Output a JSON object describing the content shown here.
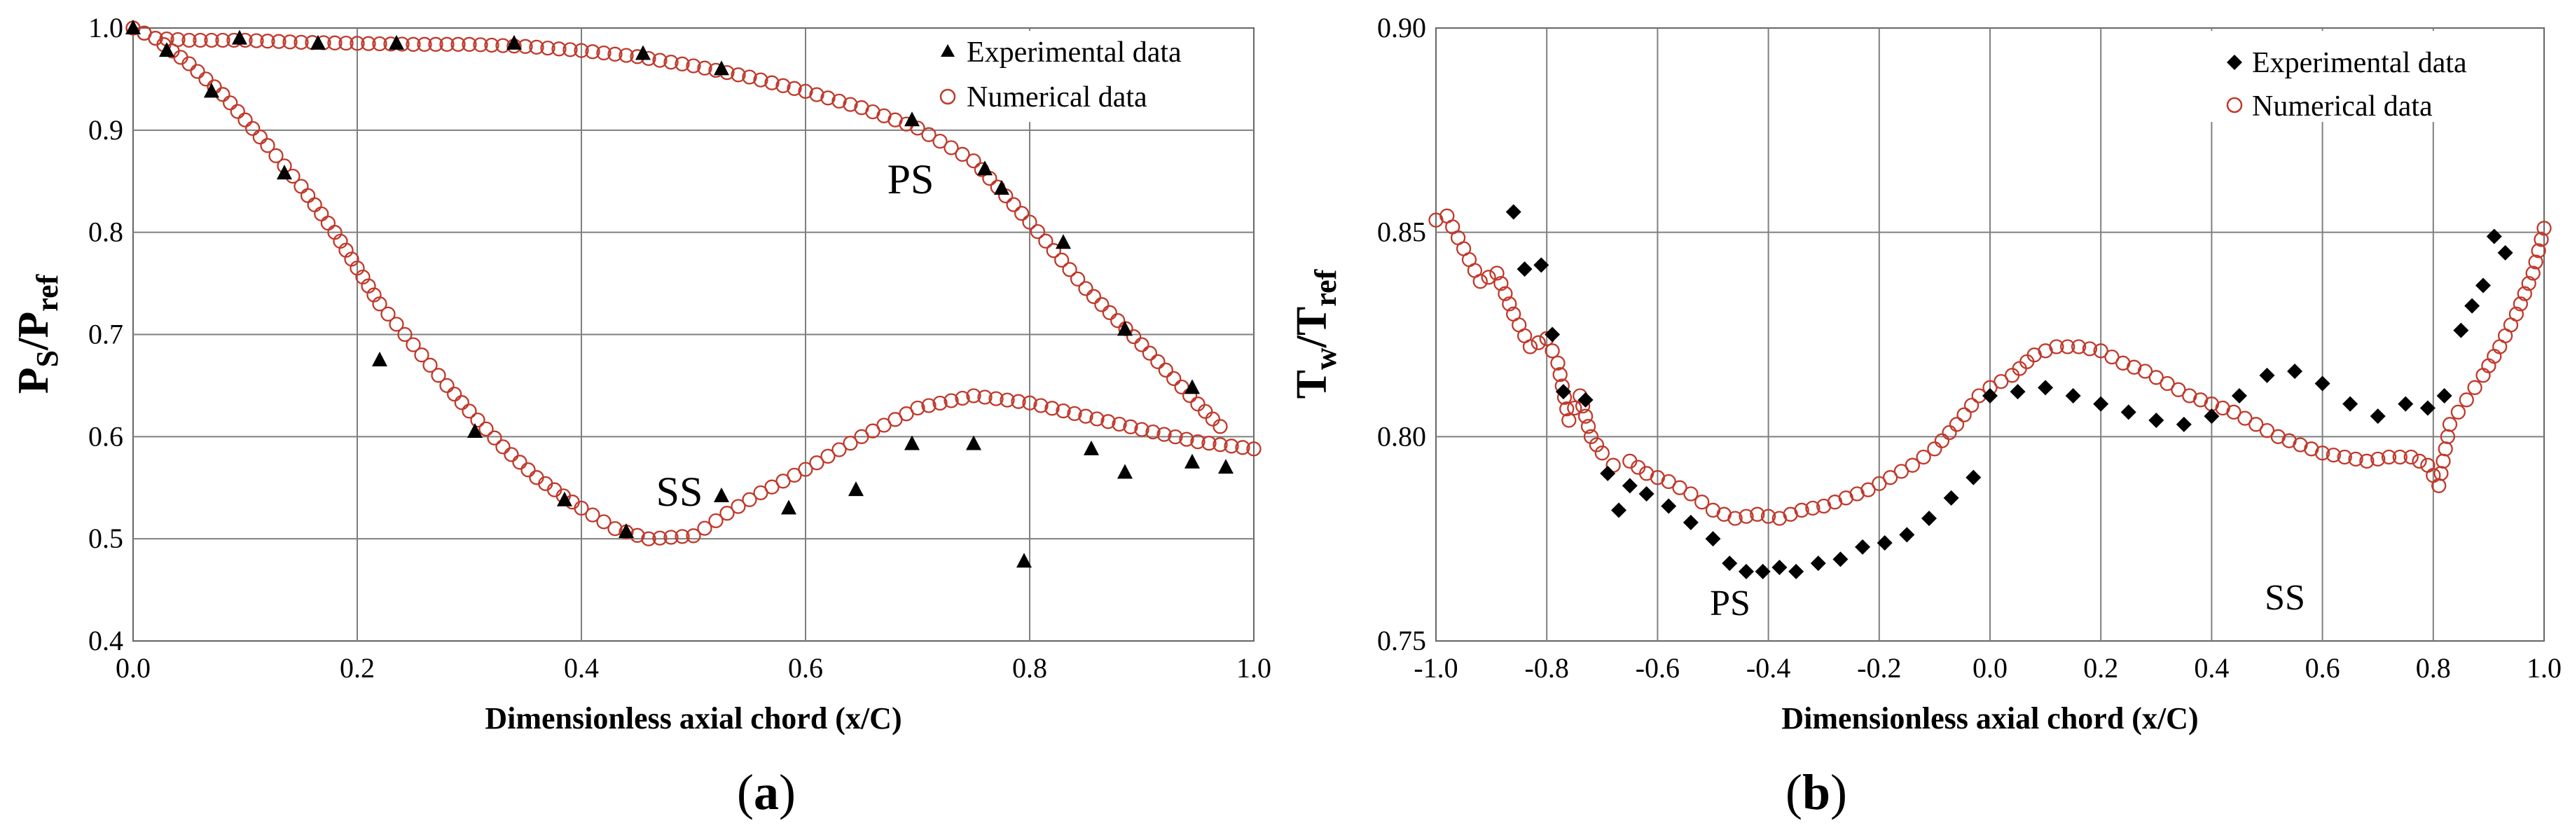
{
  "chart_data": [
    {
      "type": "scatter",
      "panel": "a",
      "caption": {
        "open": "(",
        "label": "a",
        "close": ")"
      },
      "xlabel": "Dimensionless axial chord (x/C)",
      "ylabel": {
        "main": "P",
        "sub1": "S",
        "sep": "/P",
        "sub2": "ref"
      },
      "xlim": [
        0,
        1
      ],
      "ylim": [
        0.4,
        1.0
      ],
      "xticks": [
        "0.0",
        "0.2",
        "0.4",
        "0.6",
        "0.8",
        "1.0"
      ],
      "yticks": [
        "0.4",
        "0.5",
        "0.6",
        "0.7",
        "0.8",
        "0.9",
        "1.0"
      ],
      "grid": true,
      "legend_position": "top-right",
      "legend": [
        "Experimental data",
        "Numerical data"
      ],
      "annotations": [
        {
          "text": "PS",
          "x": 0.69,
          "y": 0.875
        },
        {
          "text": "SS",
          "x": 0.42,
          "y": 0.545
        }
      ],
      "series": [
        {
          "name": "Experimental data",
          "marker": "triangle",
          "color": "#000000",
          "points": [
            [
              0.0,
              1.0
            ],
            [
              0.03,
              0.978
            ],
            [
              0.07,
              0.938
            ],
            [
              0.095,
              0.99
            ],
            [
              0.135,
              0.858
            ],
            [
              0.165,
              0.985
            ],
            [
              0.22,
              0.675
            ],
            [
              0.235,
              0.985
            ],
            [
              0.305,
              0.605
            ],
            [
              0.34,
              0.985
            ],
            [
              0.385,
              0.538
            ],
            [
              0.44,
              0.507
            ],
            [
              0.455,
              0.975
            ],
            [
              0.525,
              0.542
            ],
            [
              0.525,
              0.96
            ],
            [
              0.585,
              0.53
            ],
            [
              0.645,
              0.548
            ],
            [
              0.695,
              0.593
            ],
            [
              0.695,
              0.91
            ],
            [
              0.75,
              0.593
            ],
            [
              0.76,
              0.862
            ],
            [
              0.775,
              0.843
            ],
            [
              0.795,
              0.478
            ],
            [
              0.83,
              0.79
            ],
            [
              0.855,
              0.588
            ],
            [
              0.885,
              0.565
            ],
            [
              0.885,
              0.705
            ],
            [
              0.945,
              0.575
            ],
            [
              0.945,
              0.648
            ],
            [
              0.975,
              0.57
            ]
          ]
        },
        {
          "name": "Numerical data - PS",
          "marker": "circle-open",
          "color": "#c0392b",
          "x": [
            0.0,
            0.02,
            0.05,
            0.1,
            0.15,
            0.2,
            0.25,
            0.3,
            0.35,
            0.4,
            0.45,
            0.5,
            0.55,
            0.6,
            0.65,
            0.7,
            0.75,
            0.8,
            0.85,
            0.9,
            0.95,
            0.97
          ],
          "y": [
            1.0,
            0.99,
            0.988,
            0.988,
            0.986,
            0.985,
            0.984,
            0.984,
            0.982,
            0.978,
            0.972,
            0.963,
            0.952,
            0.938,
            0.922,
            0.902,
            0.87,
            0.81,
            0.745,
            0.69,
            0.632,
            0.61
          ]
        },
        {
          "name": "Numerical data - SS",
          "marker": "circle-open",
          "color": "#c0392b",
          "x": [
            0.0,
            0.02,
            0.05,
            0.08,
            0.1,
            0.12,
            0.15,
            0.18,
            0.2,
            0.22,
            0.25,
            0.28,
            0.3,
            0.33,
            0.36,
            0.4,
            0.43,
            0.46,
            0.5,
            0.53,
            0.56,
            0.6,
            0.65,
            0.7,
            0.75,
            0.8,
            0.85,
            0.9,
            0.95,
            1.0
          ],
          "y": [
            1.0,
            0.99,
            0.965,
            0.935,
            0.91,
            0.885,
            0.845,
            0.8,
            0.765,
            0.73,
            0.69,
            0.65,
            0.625,
            0.59,
            0.56,
            0.53,
            0.51,
            0.5,
            0.503,
            0.525,
            0.545,
            0.568,
            0.6,
            0.628,
            0.64,
            0.633,
            0.62,
            0.607,
            0.595,
            0.588
          ]
        }
      ]
    },
    {
      "type": "scatter",
      "panel": "b",
      "caption": {
        "open": "(",
        "label": "b",
        "close": ")"
      },
      "xlabel": "Dimensionless axial chord (x/C)",
      "ylabel": {
        "main": "T",
        "sub1": "w",
        "sep": "/T",
        "sub2": "ref"
      },
      "xlim": [
        -1,
        1
      ],
      "ylim": [
        0.75,
        0.9
      ],
      "xticks": [
        "-1.0",
        "-0.8",
        "-0.6",
        "-0.4",
        "-0.2",
        "0.0",
        "0.2",
        "0.4",
        "0.6",
        "0.8",
        "1.0"
      ],
      "yticks": [
        "0.75",
        "0.80",
        "0.85",
        "0.90"
      ],
      "grid": true,
      "legend_position": "top-right",
      "legend": [
        "Experimental data",
        "Numerical data"
      ],
      "annotations": [
        {
          "text": "PS",
          "x": -0.44,
          "y": 0.766
        },
        {
          "text": "SS",
          "x": 0.55,
          "y": 0.768
        }
      ],
      "series": [
        {
          "name": "Experimental data",
          "marker": "diamond",
          "color": "#000000",
          "points": [
            [
              -0.86,
              0.855
            ],
            [
              -0.84,
              0.841
            ],
            [
              -0.81,
              0.842
            ],
            [
              -0.79,
              0.825
            ],
            [
              -0.77,
              0.811
            ],
            [
              -0.73,
              0.809
            ],
            [
              -0.69,
              0.791
            ],
            [
              -0.67,
              0.782
            ],
            [
              -0.65,
              0.788
            ],
            [
              -0.62,
              0.786
            ],
            [
              -0.58,
              0.783
            ],
            [
              -0.54,
              0.779
            ],
            [
              -0.5,
              0.775
            ],
            [
              -0.47,
              0.769
            ],
            [
              -0.44,
              0.767
            ],
            [
              -0.41,
              0.767
            ],
            [
              -0.38,
              0.768
            ],
            [
              -0.35,
              0.767
            ],
            [
              -0.31,
              0.769
            ],
            [
              -0.27,
              0.77
            ],
            [
              -0.23,
              0.773
            ],
            [
              -0.19,
              0.774
            ],
            [
              -0.15,
              0.776
            ],
            [
              -0.11,
              0.78
            ],
            [
              -0.07,
              0.785
            ],
            [
              -0.03,
              0.79
            ],
            [
              0.0,
              0.81
            ],
            [
              0.05,
              0.811
            ],
            [
              0.1,
              0.812
            ],
            [
              0.15,
              0.81
            ],
            [
              0.2,
              0.808
            ],
            [
              0.25,
              0.806
            ],
            [
              0.3,
              0.804
            ],
            [
              0.35,
              0.803
            ],
            [
              0.4,
              0.805
            ],
            [
              0.45,
              0.81
            ],
            [
              0.5,
              0.815
            ],
            [
              0.55,
              0.816
            ],
            [
              0.6,
              0.813
            ],
            [
              0.65,
              0.808
            ],
            [
              0.7,
              0.805
            ],
            [
              0.75,
              0.808
            ],
            [
              0.79,
              0.807
            ],
            [
              0.82,
              0.81
            ],
            [
              0.85,
              0.826
            ],
            [
              0.87,
              0.832
            ],
            [
              0.89,
              0.837
            ],
            [
              0.91,
              0.849
            ],
            [
              0.93,
              0.845
            ]
          ]
        },
        {
          "name": "Numerical data",
          "marker": "circle-open",
          "color": "#c0392b",
          "x": [
            -1.0,
            -0.98,
            -0.95,
            -0.92,
            -0.89,
            -0.86,
            -0.83,
            -0.8,
            -0.78,
            -0.76,
            -0.74,
            -0.72,
            -0.7,
            -0.68,
            -0.65,
            -0.62,
            -0.58,
            -0.54,
            -0.5,
            -0.46,
            -0.42,
            -0.38,
            -0.34,
            -0.3,
            -0.26,
            -0.22,
            -0.18,
            -0.14,
            -0.1,
            -0.06,
            -0.02,
            0.0,
            0.04,
            0.08,
            0.12,
            0.16,
            0.2,
            0.24,
            0.28,
            0.32,
            0.36,
            0.4,
            0.44,
            0.48,
            0.52,
            0.56,
            0.6,
            0.64,
            0.68,
            0.72,
            0.76,
            0.79,
            0.81,
            0.83,
            0.86,
            0.89,
            0.92,
            0.95,
            0.98,
            1.0
          ],
          "y": [
            0.853,
            0.854,
            0.846,
            0.838,
            0.84,
            0.83,
            0.822,
            0.824,
            0.818,
            0.804,
            0.81,
            0.8,
            0.796,
            0.793,
            0.794,
            0.791,
            0.789,
            0.786,
            0.782,
            0.78,
            0.781,
            0.78,
            0.782,
            0.783,
            0.785,
            0.787,
            0.79,
            0.793,
            0.797,
            0.803,
            0.81,
            0.812,
            0.815,
            0.82,
            0.822,
            0.822,
            0.821,
            0.818,
            0.816,
            0.813,
            0.81,
            0.808,
            0.806,
            0.803,
            0.8,
            0.798,
            0.796,
            0.795,
            0.794,
            0.795,
            0.795,
            0.793,
            0.788,
            0.803,
            0.809,
            0.815,
            0.822,
            0.83,
            0.84,
            0.851
          ]
        }
      ]
    }
  ]
}
